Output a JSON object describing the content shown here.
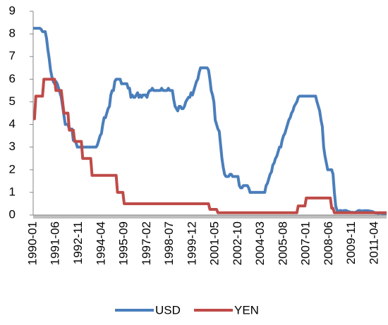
{
  "chart_data": {
    "type": "line",
    "categories": [
      "1990-01",
      null,
      null,
      null,
      null,
      null,
      null,
      null,
      null,
      null,
      null,
      null,
      null,
      null,
      null,
      null,
      null,
      "1991-06",
      null,
      null,
      null,
      null,
      null,
      null,
      null,
      null,
      null,
      null,
      null,
      null,
      null,
      null,
      null,
      null,
      "1992-11",
      null,
      null,
      null,
      null,
      null,
      null,
      null,
      null,
      null,
      null,
      null,
      null,
      null,
      null,
      null,
      null,
      "1994-04",
      null,
      null,
      null,
      null,
      null,
      null,
      null,
      null,
      null,
      null,
      null,
      null,
      null,
      null,
      null,
      null,
      "1995-09",
      null,
      null,
      null,
      null,
      null,
      null,
      null,
      null,
      null,
      null,
      null,
      null,
      null,
      null,
      null,
      null,
      "1997-02",
      null,
      null,
      null,
      null,
      null,
      null,
      null,
      null,
      null,
      null,
      null,
      null,
      null,
      null,
      null,
      null,
      "1998-07",
      null,
      null,
      null,
      null,
      null,
      null,
      null,
      null,
      null,
      null,
      null,
      null,
      null,
      null,
      null,
      null,
      "1999-12",
      null,
      null,
      null,
      null,
      null,
      null,
      null,
      null,
      null,
      null,
      null,
      null,
      null,
      null,
      null,
      null,
      "2001-05",
      null,
      null,
      null,
      null,
      null,
      null,
      null,
      null,
      null,
      null,
      null,
      null,
      null,
      null,
      null,
      null,
      "2002-10",
      null,
      null,
      null,
      null,
      null,
      null,
      null,
      null,
      null,
      null,
      null,
      null,
      null,
      null,
      null,
      null,
      "2004-03",
      null,
      null,
      null,
      null,
      null,
      null,
      null,
      null,
      null,
      null,
      null,
      null,
      null,
      null,
      null,
      null,
      "2005-08",
      null,
      null,
      null,
      null,
      null,
      null,
      null,
      null,
      null,
      null,
      null,
      null,
      null,
      null,
      null,
      null,
      "2007-01",
      null,
      null,
      null,
      null,
      null,
      null,
      null,
      null,
      null,
      null,
      null,
      null,
      null,
      null,
      null,
      null,
      "2008-06",
      null,
      null,
      null,
      null,
      null,
      null,
      null,
      null,
      null,
      null,
      null,
      null,
      null,
      null,
      null,
      null,
      "2009-11",
      null,
      null,
      null,
      null,
      null,
      null,
      null,
      null,
      null,
      null,
      null,
      null,
      null,
      null,
      null,
      null,
      "2011-04",
      null,
      null,
      null,
      null,
      null,
      null,
      null,
      null,
      null
    ],
    "series": [
      {
        "name": "USD",
        "color": "#4a7ebb",
        "values": [
          8.25,
          8.25,
          8.25,
          8.25,
          8.25,
          8.25,
          8.2,
          8.1,
          8.1,
          8.1,
          7.8,
          7.3,
          6.9,
          6.4,
          6.1,
          5.9,
          5.8,
          5.9,
          5.8,
          5.6,
          5.4,
          5.2,
          4.8,
          4.4,
          4.0,
          4.0,
          4.0,
          3.8,
          3.8,
          3.8,
          3.3,
          3.3,
          3.2,
          3.0,
          3.0,
          3.0,
          3.0,
          3.0,
          3.0,
          3.0,
          3.0,
          3.0,
          3.0,
          3.0,
          3.0,
          3.0,
          3.0,
          3.0,
          3.1,
          3.3,
          3.5,
          3.6,
          4.0,
          4.3,
          4.3,
          4.5,
          4.7,
          4.8,
          5.3,
          5.5,
          5.5,
          5.9,
          6.0,
          6.0,
          6.0,
          6.0,
          5.8,
          5.8,
          5.8,
          5.8,
          5.8,
          5.6,
          5.6,
          5.2,
          5.3,
          5.2,
          5.2,
          5.3,
          5.4,
          5.2,
          5.3,
          5.2,
          5.3,
          5.3,
          5.3,
          5.2,
          5.4,
          5.5,
          5.5,
          5.6,
          5.5,
          5.5,
          5.5,
          5.5,
          5.5,
          5.5,
          5.6,
          5.5,
          5.5,
          5.5,
          5.5,
          5.6,
          5.5,
          5.5,
          5.5,
          5.1,
          4.8,
          4.7,
          4.6,
          4.8,
          4.8,
          4.7,
          4.7,
          4.8,
          5.0,
          5.1,
          5.2,
          5.2,
          5.4,
          5.3,
          5.5,
          5.7,
          5.9,
          6.0,
          6.3,
          6.5,
          6.5,
          6.5,
          6.5,
          6.5,
          6.5,
          6.4,
          6.0,
          5.5,
          5.3,
          5.0,
          4.2,
          4.0,
          3.8,
          3.7,
          3.1,
          2.5,
          2.1,
          1.8,
          1.7,
          1.7,
          1.7,
          1.8,
          1.8,
          1.7,
          1.7,
          1.7,
          1.7,
          1.7,
          1.3,
          1.2,
          1.2,
          1.3,
          1.3,
          1.3,
          1.3,
          1.2,
          1.0,
          1.0,
          1.0,
          1.0,
          1.0,
          1.0,
          1.0,
          1.0,
          1.0,
          1.0,
          1.0,
          1.0,
          1.3,
          1.4,
          1.6,
          1.8,
          1.9,
          2.2,
          2.3,
          2.5,
          2.6,
          2.8,
          3.0,
          3.0,
          3.3,
          3.5,
          3.6,
          3.8,
          4.0,
          4.2,
          4.3,
          4.5,
          4.6,
          4.8,
          4.9,
          5.0,
          5.2,
          5.25,
          5.25,
          5.25,
          5.25,
          5.25,
          5.25,
          5.25,
          5.25,
          5.25,
          5.25,
          5.25,
          5.25,
          5.25,
          5.0,
          4.8,
          4.6,
          4.2,
          3.9,
          3.0,
          2.6,
          2.3,
          2.0,
          2.0,
          2.0,
          2.0,
          1.8,
          1.0,
          0.4,
          0.2,
          0.15,
          0.2,
          0.2,
          0.15,
          0.2,
          0.2,
          0.2,
          0.15,
          0.15,
          0.12,
          0.12,
          0.12,
          0.1,
          0.13,
          0.16,
          0.2,
          0.2,
          0.18,
          0.18,
          0.19,
          0.19,
          0.19,
          0.19,
          0.18,
          0.17,
          0.16,
          0.14,
          0.1,
          0.09,
          0.09,
          0.07,
          0.1,
          0.08,
          0.07,
          0.08,
          0.07,
          0.08
        ]
      },
      {
        "name": "YEN",
        "color": "#be4b48",
        "values": [
          4.25,
          4.25,
          5.25,
          5.25,
          5.25,
          5.25,
          5.25,
          5.25,
          6.0,
          6.0,
          6.0,
          6.0,
          6.0,
          6.0,
          6.0,
          6.0,
          6.0,
          5.5,
          5.5,
          5.5,
          5.5,
          5.5,
          5.0,
          4.5,
          4.5,
          4.5,
          4.5,
          3.75,
          3.75,
          3.75,
          3.75,
          3.25,
          3.25,
          3.25,
          3.25,
          3.25,
          3.25,
          2.5,
          2.5,
          2.5,
          2.5,
          2.5,
          2.5,
          2.5,
          1.75,
          1.75,
          1.75,
          1.75,
          1.75,
          1.75,
          1.75,
          1.75,
          1.75,
          1.75,
          1.75,
          1.75,
          1.75,
          1.75,
          1.75,
          1.75,
          1.75,
          1.75,
          1.75,
          1.0,
          1.0,
          1.0,
          1.0,
          1.0,
          0.5,
          0.5,
          0.5,
          0.5,
          0.5,
          0.5,
          0.5,
          0.5,
          0.5,
          0.5,
          0.5,
          0.5,
          0.5,
          0.5,
          0.5,
          0.5,
          0.5,
          0.5,
          0.5,
          0.5,
          0.5,
          0.5,
          0.5,
          0.5,
          0.5,
          0.5,
          0.5,
          0.5,
          0.5,
          0.5,
          0.5,
          0.5,
          0.5,
          0.5,
          0.5,
          0.5,
          0.5,
          0.5,
          0.5,
          0.5,
          0.5,
          0.5,
          0.5,
          0.5,
          0.5,
          0.5,
          0.5,
          0.5,
          0.5,
          0.5,
          0.5,
          0.5,
          0.5,
          0.5,
          0.5,
          0.5,
          0.5,
          0.5,
          0.5,
          0.5,
          0.5,
          0.5,
          0.5,
          0.5,
          0.25,
          0.25,
          0.25,
          0.25,
          0.25,
          0.25,
          0.1,
          0.1,
          0.1,
          0.1,
          0.1,
          0.1,
          0.1,
          0.1,
          0.1,
          0.1,
          0.1,
          0.1,
          0.1,
          0.1,
          0.1,
          0.1,
          0.1,
          0.1,
          0.1,
          0.1,
          0.1,
          0.1,
          0.1,
          0.1,
          0.1,
          0.1,
          0.1,
          0.1,
          0.1,
          0.1,
          0.1,
          0.1,
          0.1,
          0.1,
          0.1,
          0.1,
          0.1,
          0.1,
          0.1,
          0.1,
          0.1,
          0.1,
          0.1,
          0.1,
          0.1,
          0.1,
          0.1,
          0.1,
          0.1,
          0.1,
          0.1,
          0.1,
          0.1,
          0.1,
          0.1,
          0.1,
          0.1,
          0.1,
          0.1,
          0.1,
          0.4,
          0.4,
          0.4,
          0.4,
          0.4,
          0.4,
          0.75,
          0.75,
          0.75,
          0.75,
          0.75,
          0.75,
          0.75,
          0.75,
          0.75,
          0.75,
          0.75,
          0.75,
          0.75,
          0.75,
          0.75,
          0.75,
          0.75,
          0.75,
          0.75,
          0.3,
          0.3,
          0.1,
          0.1,
          0.1,
          0.1,
          0.1,
          0.1,
          0.1,
          0.1,
          0.1,
          0.1,
          0.1,
          0.1,
          0.1,
          0.1,
          0.1,
          0.1,
          0.1,
          0.1,
          0.1,
          0.1,
          0.1,
          0.1,
          0.1,
          0.1,
          0.1,
          0.1,
          0.1,
          0.1,
          0.1,
          0.1,
          0.1,
          0.1,
          0.1,
          0.1,
          0.1,
          0.1,
          0.1,
          0.1,
          0.1,
          0.1
        ]
      }
    ],
    "ylim": [
      0,
      9
    ],
    "yticks": [
      0,
      1,
      2,
      3,
      4,
      5,
      6,
      7,
      8,
      9
    ],
    "grid": false,
    "legend": "bottom"
  }
}
